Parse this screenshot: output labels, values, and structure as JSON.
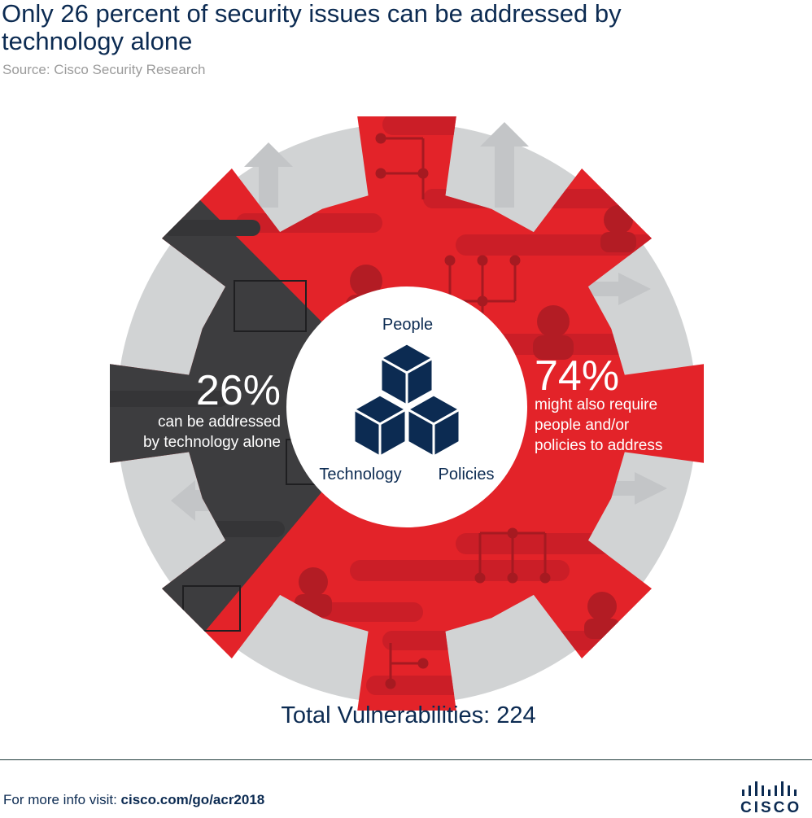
{
  "title": "Only 26 percent of security issues can be addressed by technology alone",
  "source": "Source: Cisco Security Research",
  "chart_data": {
    "type": "pie",
    "total_label": "Total Vulnerabilities: 224",
    "slices": [
      {
        "label": "can be addressed by technology alone",
        "value": 26,
        "value_label": "26%",
        "color": "#3d3d3f"
      },
      {
        "label": "might also require people and/or policies to address",
        "value": 74,
        "value_label": "74%",
        "color": "#e32329"
      }
    ],
    "center_labels": {
      "top": "People",
      "left": "Technology",
      "right": "Policies"
    }
  },
  "left_stat": {
    "pct": "26%",
    "line1": "can be addressed",
    "line2": "by technology alone"
  },
  "right_stat": {
    "pct": "74%",
    "line1": "might also require",
    "line2": "people and/or",
    "line3": "policies to address"
  },
  "footer": {
    "prefix": "For more info visit: ",
    "link": "cisco.com/go/acr2018"
  },
  "logo": {
    "word": "CISCO"
  },
  "colors": {
    "red": "#e32329",
    "dark": "#3d3d3f",
    "ring": "#d1d3d4",
    "navy": "#0c2b52"
  }
}
